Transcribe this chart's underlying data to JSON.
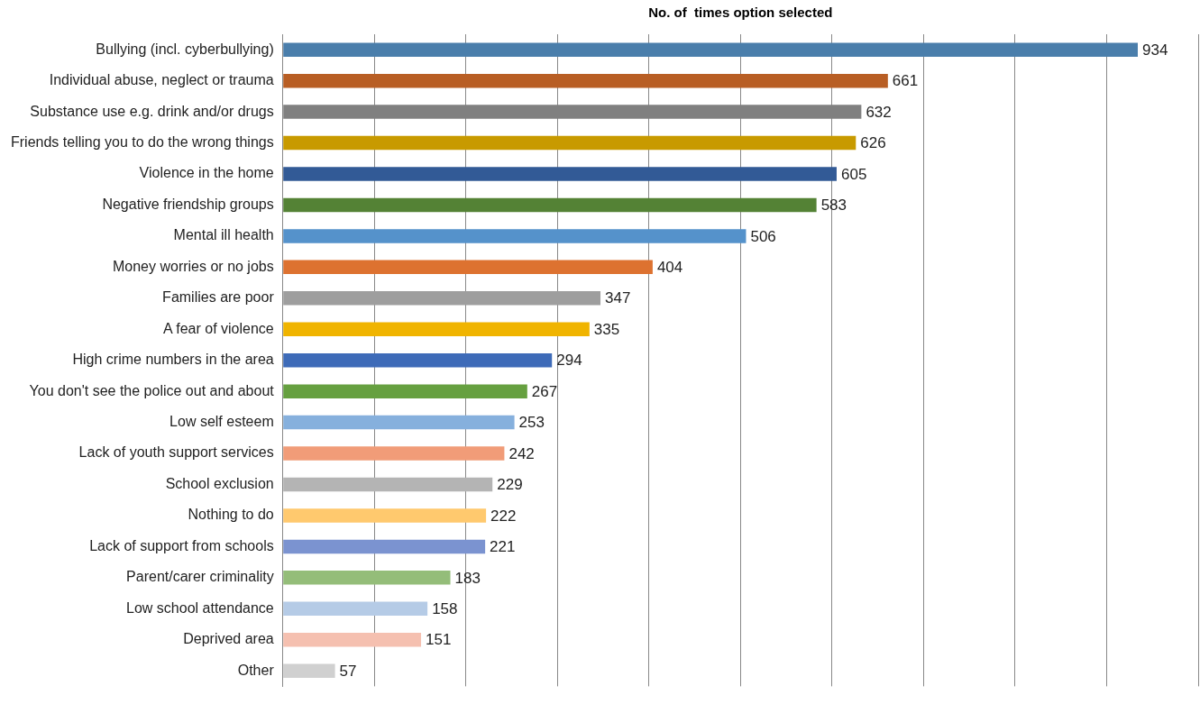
{
  "chart_data": {
    "type": "bar",
    "orientation": "horizontal",
    "title": "No. of  times option selected",
    "categories": [
      "Bullying (incl. cyberbullying)",
      "Individual abuse, neglect or trauma",
      "Substance use e.g. drink and/or drugs",
      "Friends telling you to do the wrong things",
      "Violence in the home",
      "Negative friendship groups",
      "Mental ill health",
      "Money worries or no jobs",
      "Families are poor",
      "A fear of violence",
      "High crime numbers in the area",
      "You don't see the police out and about",
      "Low self esteem",
      "Lack of youth support services",
      "School exclusion",
      "Nothing to do",
      "Lack of support from schools",
      "Parent/carer criminality",
      "Low school attendance",
      "Deprived area",
      "Other"
    ],
    "values": [
      934,
      661,
      632,
      626,
      605,
      583,
      506,
      404,
      347,
      335,
      294,
      267,
      253,
      242,
      229,
      222,
      221,
      183,
      158,
      151,
      57
    ],
    "colors": [
      "#4a7eab",
      "#b85e24",
      "#808080",
      "#c89a00",
      "#325a96",
      "#548235",
      "#5592cb",
      "#dd7230",
      "#9e9e9e",
      "#f0b400",
      "#3e6bb8",
      "#66a040",
      "#86b0dd",
      "#f19c78",
      "#b4b4b4",
      "#ffc96e",
      "#7b93d0",
      "#94bd79",
      "#b5cbe6",
      "#f5c0b0",
      "#d0d0d0"
    ],
    "xlim": [
      0,
      1000
    ],
    "xticks": [
      {
        "value": 0,
        "label": null
      },
      {
        "value": 100,
        "label": null
      },
      {
        "value": 200,
        "label": null
      },
      {
        "value": 300,
        "label": null
      },
      {
        "value": 400,
        "label": null
      },
      {
        "value": 500,
        "label": null
      },
      {
        "value": 600,
        "label": null
      },
      {
        "value": 700,
        "label": null
      },
      {
        "value": 800,
        "label": null
      },
      {
        "value": 900,
        "label": null
      },
      {
        "value": 1000,
        "label": null
      }
    ],
    "grid": "x",
    "legend": false,
    "tick_labels": "y",
    "data_labels": true
  }
}
